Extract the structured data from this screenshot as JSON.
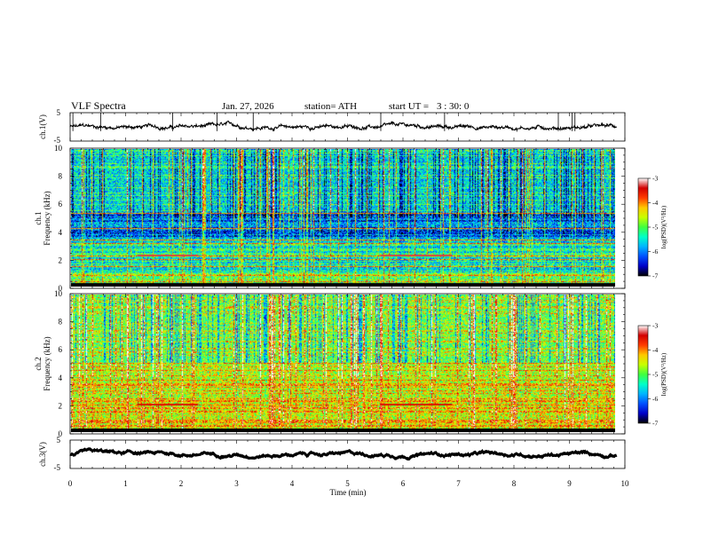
{
  "header": {
    "title": "VLF Spectra",
    "date": "Jan. 27, 2026",
    "station": "station= ATH",
    "start_ut_label": "start UT =",
    "start_ut_value": "3 : 30: 0"
  },
  "chart_data": [
    {
      "type": "line",
      "panel": "ch1-waveform",
      "ylabel": "ch.1(V)",
      "ylim": [
        -5,
        5
      ],
      "yticks": [
        "5",
        "-5"
      ],
      "xlim": [
        0,
        10
      ],
      "baseline_v": 0.0,
      "noise_amplitude_v": 0.8,
      "spikes_min": [
        0.05,
        0.55,
        1.85,
        2.65,
        3.3,
        5.6,
        6.75,
        8.8,
        9.05,
        9.1
      ],
      "color": "#000000"
    },
    {
      "type": "heatmap",
      "panel": "ch1-spectrogram",
      "ylabel": "Frequency (kHz)",
      "channel_label": "ch.1",
      "ylim": [
        0,
        10
      ],
      "yticks": [
        "0",
        "2",
        "4",
        "6",
        "8",
        "10"
      ],
      "xlim": [
        0,
        9.85
      ],
      "colorbar": {
        "label": "log(PSD)(V²/Hz)",
        "range": [
          -7,
          -3
        ],
        "ticks": [
          "-3",
          "-4",
          "-5",
          "-6",
          "-7"
        ],
        "colors": [
          "#000000",
          "#0000c8",
          "#0050ff",
          "#00b4ff",
          "#00ffc8",
          "#40ff40",
          "#c8ff00",
          "#ffc800",
          "#ff3c00",
          "#d20000",
          "#ffffff"
        ]
      },
      "horizontal_lines_khz": [
        0.3,
        0.8,
        1.4,
        1.95,
        2.2,
        3.1,
        3.4,
        4.2,
        5.3
      ],
      "events": [
        {
          "t_start_min": 1.2,
          "t_end_min": 2.3,
          "freq_khz": 2.25,
          "level": -3.3
        },
        {
          "t_start_min": 5.6,
          "t_end_min": 6.9,
          "freq_khz": 2.25,
          "level": -3.3
        }
      ]
    },
    {
      "type": "heatmap",
      "panel": "ch2-spectrogram",
      "ylabel": "Frequency (kHz)",
      "channel_label": "ch.2",
      "ylim": [
        0,
        10
      ],
      "yticks": [
        "0",
        "2",
        "4",
        "6",
        "8",
        "10"
      ],
      "xlim": [
        0,
        9.85
      ],
      "colorbar": {
        "label": "log(PSD)(V²/Hz)",
        "range": [
          -7,
          -3
        ],
        "ticks": [
          "-3",
          "-4",
          "-5",
          "-6",
          "-7"
        ],
        "colors": [
          "#000000",
          "#0000c8",
          "#0050ff",
          "#00b4ff",
          "#00ffc8",
          "#40ff40",
          "#c8ff00",
          "#ffc800",
          "#ff3c00",
          "#d20000",
          "#ffffff"
        ]
      },
      "horizontal_lines_khz": [
        0.4,
        1.95,
        2.2,
        3.4,
        3.75,
        4.5,
        5.0
      ],
      "events": [
        {
          "t_start_min": 1.2,
          "t_end_min": 2.3,
          "freq_khz": 2.0,
          "level": -3.5
        },
        {
          "t_start_min": 5.6,
          "t_end_min": 6.9,
          "freq_khz": 2.0,
          "level": -3.5
        }
      ]
    },
    {
      "type": "line",
      "panel": "ch3-waveform",
      "ylabel": "ch.3(V)",
      "ylim": [
        -5,
        5
      ],
      "yticks": [
        "5",
        "-5"
      ],
      "xlim": [
        0,
        10
      ],
      "baseline_v": 0.0,
      "noise_amplitude_v": 0.2,
      "color": "#000000"
    }
  ],
  "xaxis": {
    "label": "Time (min)",
    "ticks": [
      "0",
      "1",
      "2",
      "3",
      "4",
      "5",
      "6",
      "7",
      "8",
      "9",
      "10"
    ]
  }
}
